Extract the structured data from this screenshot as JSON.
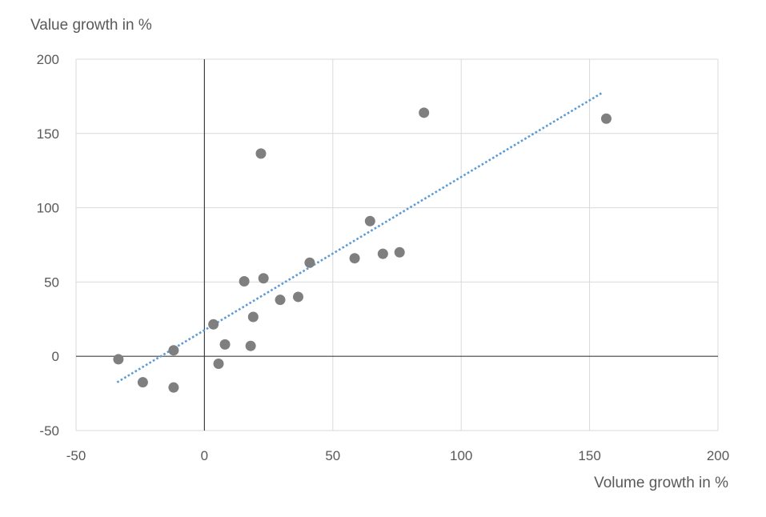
{
  "chart_data": {
    "type": "scatter",
    "xlabel": "Volume growth in %",
    "ylabel": "Value growth in %",
    "xlim": [
      -50,
      200
    ],
    "ylim": [
      -50,
      200
    ],
    "xticks": [
      -50,
      0,
      50,
      100,
      150,
      200
    ],
    "yticks": [
      -50,
      0,
      50,
      100,
      150,
      200
    ],
    "grid": true,
    "colors": {
      "points": "#7f7f7f",
      "trendline": "#5b9bd5",
      "grid": "#d9d9d9",
      "axis": "#404040",
      "text": "#595959"
    },
    "series": [
      {
        "x": [
          -33.5,
          -24,
          -12,
          -12,
          3.5,
          5.5,
          8,
          15.5,
          18,
          19,
          22,
          23,
          29.5,
          36.5,
          41,
          58.5,
          64.5,
          69.5,
          76,
          85.5,
          156.5
        ],
        "y": [
          -2,
          -17.5,
          -21,
          4,
          21.5,
          -5,
          8,
          50.5,
          7,
          26.5,
          136.5,
          52.5,
          38,
          40,
          63,
          66,
          91,
          69,
          70,
          164,
          160
        ]
      }
    ],
    "trendline": {
      "type": "linear",
      "style": "dotted",
      "x": [
        -34,
        155
      ],
      "y": [
        -17.5,
        177.5
      ]
    }
  }
}
